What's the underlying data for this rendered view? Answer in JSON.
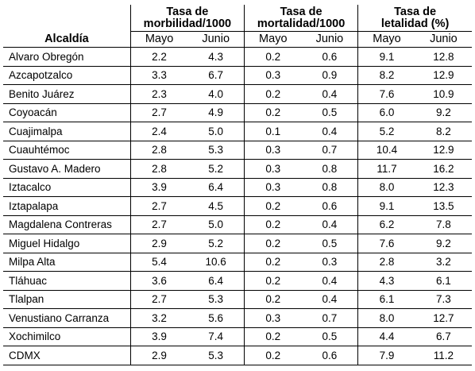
{
  "header": {
    "morbilidad": "Tasa de morbilidad/1000",
    "mortalidad": "Tasa de mortalidad/1000",
    "letalidad": "Tasa de letalidad (%)",
    "alcaldia": "Alcaldía",
    "mayo": "Mayo",
    "junio": "Junio"
  },
  "rows": [
    {
      "name": "Alvaro Obregón",
      "v": [
        "2.2",
        "4.3",
        "0.2",
        "0.6",
        "9.1",
        "12.8"
      ]
    },
    {
      "name": "Azcapotzalco",
      "v": [
        "3.3",
        "6.7",
        "0.3",
        "0.9",
        "8.2",
        "12.9"
      ]
    },
    {
      "name": "Benito Juárez",
      "v": [
        "2.3",
        "4.0",
        "0.2",
        "0.4",
        "7.6",
        "10.9"
      ]
    },
    {
      "name": "Coyoacán",
      "v": [
        "2.7",
        "4.9",
        "0.2",
        "0.5",
        "6.0",
        "9.2"
      ]
    },
    {
      "name": "Cuajimalpa",
      "v": [
        "2.4",
        "5.0",
        "0.1",
        "0.4",
        "5.2",
        "8.2"
      ]
    },
    {
      "name": "Cuauhtémoc",
      "v": [
        "2.8",
        "5.3",
        "0.3",
        "0.7",
        "10.4",
        "12.9"
      ]
    },
    {
      "name": "Gustavo A. Madero",
      "v": [
        "2.8",
        "5.2",
        "0.3",
        "0.8",
        "11.7",
        "16.2"
      ]
    },
    {
      "name": "Iztacalco",
      "v": [
        "3.9",
        "6.4",
        "0.3",
        "0.8",
        "8.0",
        "12.3"
      ]
    },
    {
      "name": "Iztapalapa",
      "v": [
        "2.7",
        "4.5",
        "0.2",
        "0.6",
        "9.1",
        "13.5"
      ]
    },
    {
      "name": "Magdalena Contreras",
      "v": [
        "2.7",
        "5.0",
        "0.2",
        "0.4",
        "6.2",
        "7.8"
      ]
    },
    {
      "name": "Miguel Hidalgo",
      "v": [
        "2.9",
        "5.2",
        "0.2",
        "0.5",
        "7.6",
        "9.2"
      ]
    },
    {
      "name": "Milpa Alta",
      "v": [
        "5.4",
        "10.6",
        "0.2",
        "0.3",
        "2.8",
        "3.2"
      ]
    },
    {
      "name": "Tláhuac",
      "v": [
        "3.6",
        "6.4",
        "0.2",
        "0.4",
        "4.3",
        "6.1"
      ]
    },
    {
      "name": "Tlalpan",
      "v": [
        "2.7",
        "5.3",
        "0.2",
        "0.4",
        "6.1",
        "7.3"
      ]
    },
    {
      "name": "Venustiano Carranza",
      "v": [
        "3.2",
        "5.6",
        "0.3",
        "0.7",
        "8.0",
        "12.7"
      ]
    },
    {
      "name": "Xochimilco",
      "v": [
        "3.9",
        "7.4",
        "0.2",
        "0.5",
        "4.4",
        "6.7"
      ]
    },
    {
      "name": "CDMX",
      "v": [
        "2.9",
        "5.3",
        "0.2",
        "0.6",
        "7.9",
        "11.2"
      ]
    }
  ]
}
